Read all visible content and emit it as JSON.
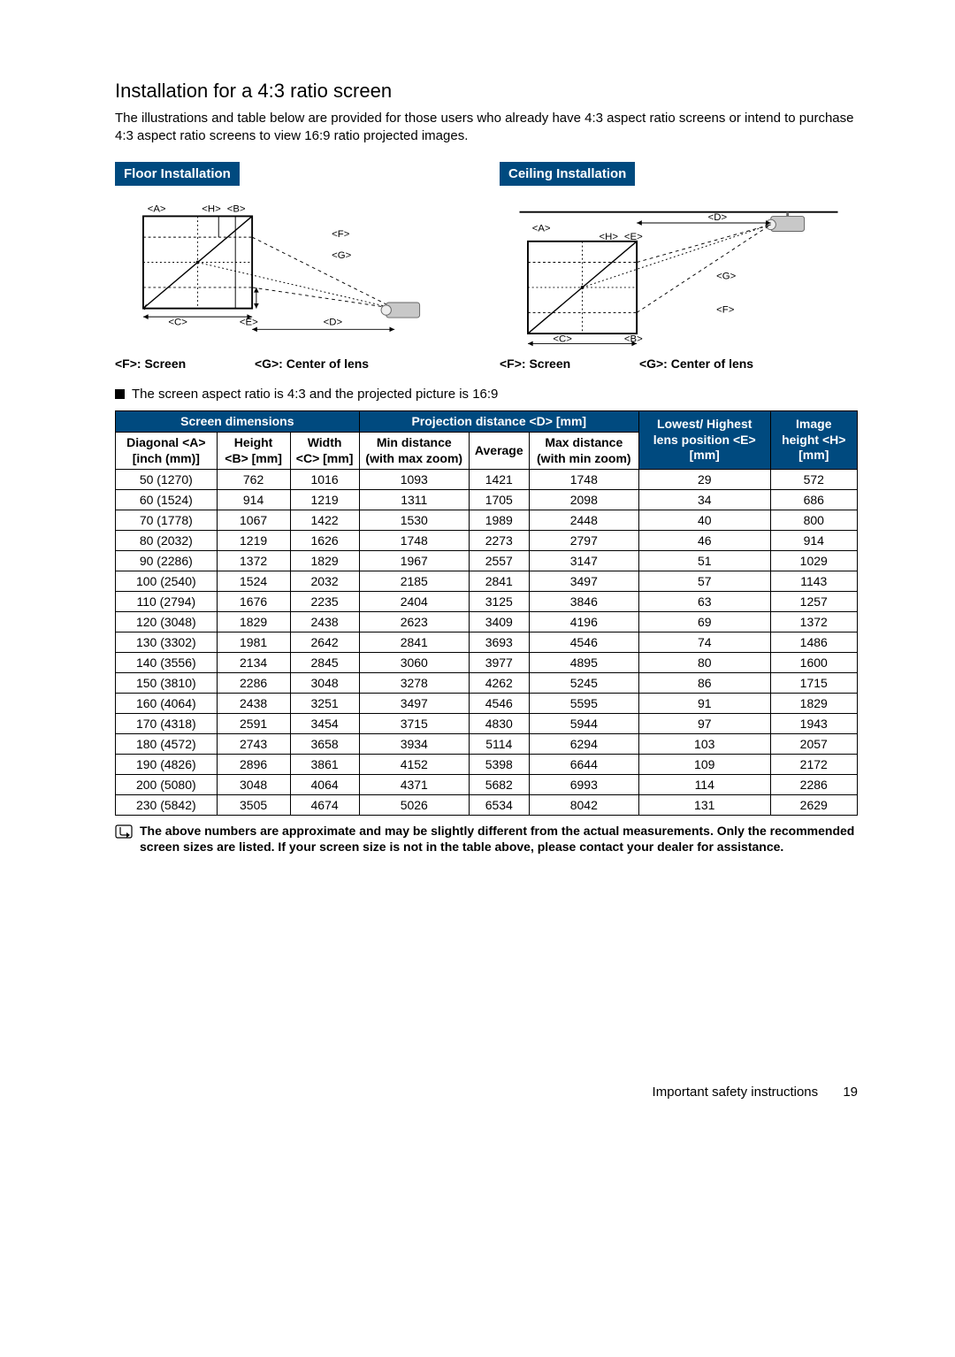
{
  "heading": "Installation for a 4:3 ratio screen",
  "intro": "The illustrations and table below are provided for those users who already have 4:3 aspect ratio screens or intend to purchase 4:3 aspect ratio screens to view 16:9 ratio projected images.",
  "diagrams": {
    "floor": {
      "title": "Floor Installation"
    },
    "ceiling": {
      "title": "Ceiling Installation"
    },
    "legend_f": "<F>: Screen",
    "legend_g": "<G>: Center of lens",
    "labels": {
      "A": "<A>",
      "B": "<B>",
      "C": "<C>",
      "D": "<D>",
      "E": "<E>",
      "F": "<F>",
      "G": "<G>",
      "H": "<H>"
    }
  },
  "bullet": "The screen aspect ratio is 4:3 and the projected picture is 16:9",
  "header": {
    "screen_dim": "Screen dimensions",
    "proj_dist": "Projection distance <D> [mm]",
    "lowest": "Lowest/ Highest lens position <E> [mm]",
    "image_h": "Image height <H> [mm]",
    "diag": "Diagonal <A> [inch (mm)]",
    "height": "Height <B> [mm]",
    "width": "Width <C> [mm]",
    "min": "Min distance (with max zoom)",
    "avg": "Average",
    "max": "Max distance (with min zoom)"
  },
  "rows": [
    [
      "50 (1270)",
      "762",
      "1016",
      "1093",
      "1421",
      "1748",
      "29",
      "572"
    ],
    [
      "60 (1524)",
      "914",
      "1219",
      "1311",
      "1705",
      "2098",
      "34",
      "686"
    ],
    [
      "70 (1778)",
      "1067",
      "1422",
      "1530",
      "1989",
      "2448",
      "40",
      "800"
    ],
    [
      "80 (2032)",
      "1219",
      "1626",
      "1748",
      "2273",
      "2797",
      "46",
      "914"
    ],
    [
      "90 (2286)",
      "1372",
      "1829",
      "1967",
      "2557",
      "3147",
      "51",
      "1029"
    ],
    [
      "100 (2540)",
      "1524",
      "2032",
      "2185",
      "2841",
      "3497",
      "57",
      "1143"
    ],
    [
      "110 (2794)",
      "1676",
      "2235",
      "2404",
      "3125",
      "3846",
      "63",
      "1257"
    ],
    [
      "120 (3048)",
      "1829",
      "2438",
      "2623",
      "3409",
      "4196",
      "69",
      "1372"
    ],
    [
      "130 (3302)",
      "1981",
      "2642",
      "2841",
      "3693",
      "4546",
      "74",
      "1486"
    ],
    [
      "140 (3556)",
      "2134",
      "2845",
      "3060",
      "3977",
      "4895",
      "80",
      "1600"
    ],
    [
      "150 (3810)",
      "2286",
      "3048",
      "3278",
      "4262",
      "5245",
      "86",
      "1715"
    ],
    [
      "160 (4064)",
      "2438",
      "3251",
      "3497",
      "4546",
      "5595",
      "91",
      "1829"
    ],
    [
      "170 (4318)",
      "2591",
      "3454",
      "3715",
      "4830",
      "5944",
      "97",
      "1943"
    ],
    [
      "180 (4572)",
      "2743",
      "3658",
      "3934",
      "5114",
      "6294",
      "103",
      "2057"
    ],
    [
      "190 (4826)",
      "2896",
      "3861",
      "4152",
      "5398",
      "6644",
      "109",
      "2172"
    ],
    [
      "200 (5080)",
      "3048",
      "4064",
      "4371",
      "5682",
      "6993",
      "114",
      "2286"
    ],
    [
      "230 (5842)",
      "3505",
      "4674",
      "5026",
      "6534",
      "8042",
      "131",
      "2629"
    ]
  ],
  "note": "The above numbers are approximate and may be slightly different from the actual measurements. Only the recommended screen sizes are listed. If your screen size is not in the table above, please contact your dealer for assistance.",
  "footer": {
    "text": "Important safety instructions",
    "page": "19"
  },
  "colors": {
    "blue": "#004a7f"
  }
}
